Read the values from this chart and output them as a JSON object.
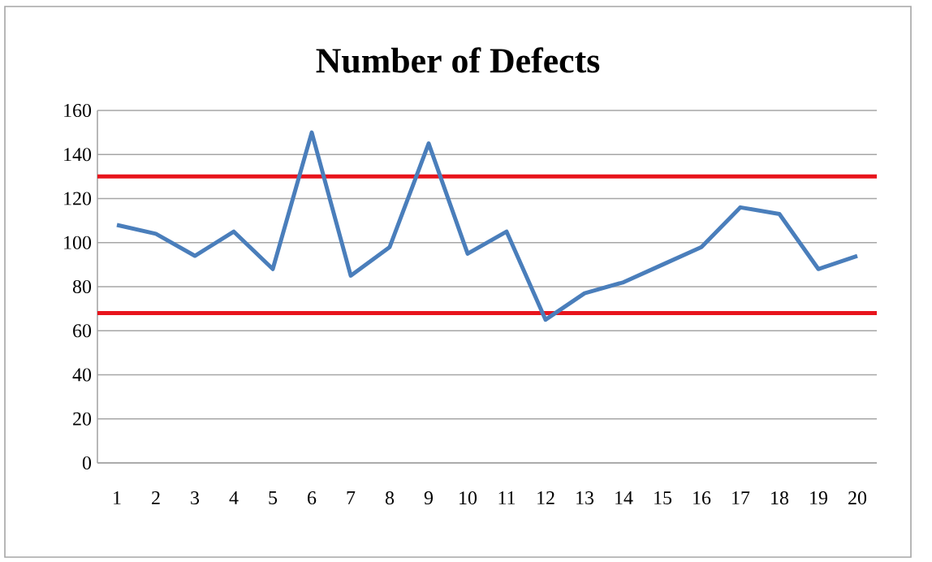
{
  "chart_data": {
    "type": "line",
    "title": "Number of Defects",
    "categories": [
      "1",
      "2",
      "3",
      "4",
      "5",
      "6",
      "7",
      "8",
      "9",
      "10",
      "11",
      "12",
      "13",
      "14",
      "15",
      "16",
      "17",
      "18",
      "19",
      "20"
    ],
    "series": [
      {
        "color": "#4a7ebb",
        "values": [
          108,
          104,
          94,
          105,
          88,
          150,
          85,
          98,
          145,
          95,
          105,
          65,
          77,
          82,
          90,
          98,
          116,
          113,
          88,
          94
        ]
      }
    ],
    "ylim": [
      0,
      160
    ],
    "yticks": [
      0,
      20,
      40,
      60,
      80,
      100,
      120,
      140,
      160
    ],
    "grid": "y",
    "marker": "none",
    "line_style": "solid",
    "ref_lines": [
      {
        "axis": "y",
        "value": 130,
        "color": "#e8141c"
      },
      {
        "axis": "y",
        "value": 68,
        "color": "#e8141c"
      }
    ]
  }
}
